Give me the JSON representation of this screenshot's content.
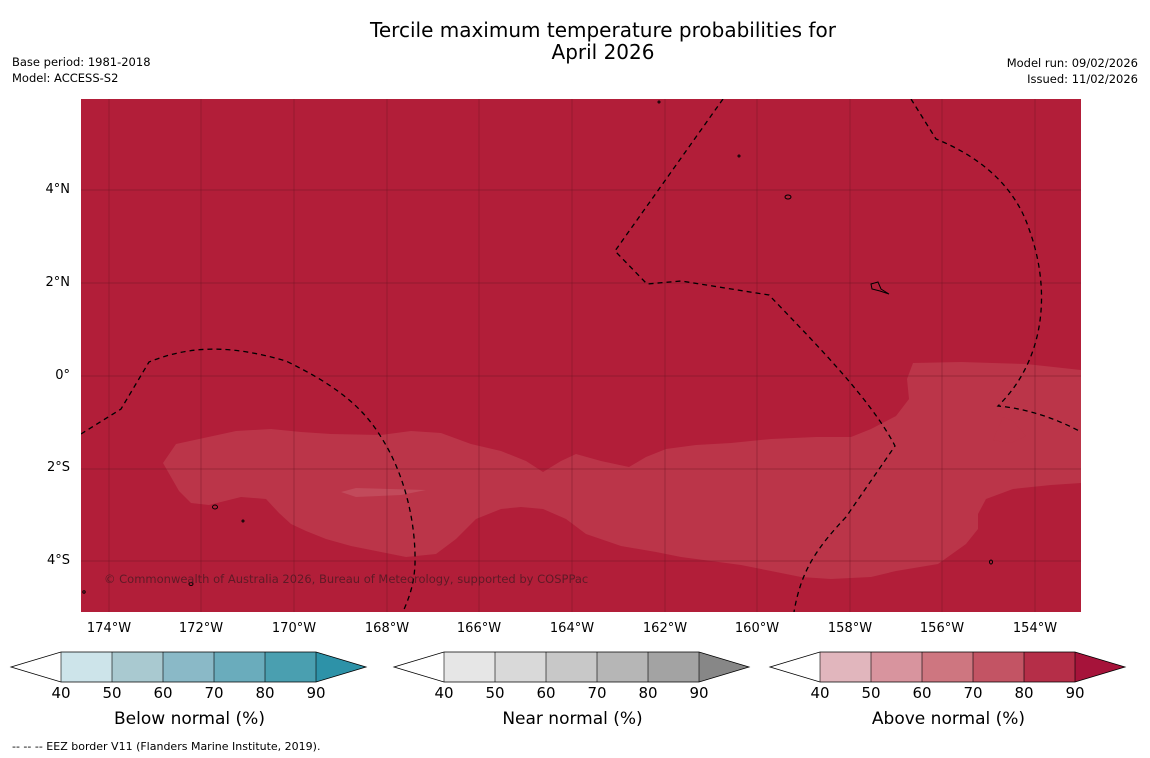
{
  "title": {
    "line1": "Tercile maximum temperature probabilities for",
    "line2": "April 2026"
  },
  "meta": {
    "base_period": "Base period: 1981-2018",
    "model": "Model: ACCESS-S2",
    "model_run": "Model run: 09/02/2026",
    "issued": "Issued: 11/02/2026"
  },
  "map": {
    "copyright": "© Commonwealth of Australia 2026, Bureau of Meteorology, supported by COSPPac",
    "lat_labels": [
      "4°N",
      "2°N",
      "0°",
      "2°S",
      "4°S"
    ],
    "lon_labels": [
      "174°W",
      "172°W",
      "170°W",
      "168°W",
      "166°W",
      "164°W",
      "162°W",
      "160°W",
      "158°W",
      "156°W",
      "154°W"
    ],
    "colors": {
      "base": "#b21e39",
      "band": "#bb3549",
      "grid": "#6e1424"
    }
  },
  "colorbars": [
    {
      "label": "Below normal (%)",
      "ticks": [
        "40",
        "50",
        "60",
        "70",
        "80",
        "90"
      ],
      "colors": [
        "#ffffff",
        "#cde4ea",
        "#a9c9d0",
        "#8ab9c7",
        "#6aacbc",
        "#4a9fb0",
        "#2d92a8"
      ]
    },
    {
      "label": "Near normal (%)",
      "ticks": [
        "40",
        "50",
        "60",
        "70",
        "80",
        "90"
      ],
      "colors": [
        "#ffffff",
        "#e6e6e6",
        "#d9d9d9",
        "#c8c8c8",
        "#b6b6b6",
        "#a3a3a3",
        "#878787"
      ]
    },
    {
      "label": "Above normal (%)",
      "ticks": [
        "40",
        "50",
        "60",
        "70",
        "80",
        "90"
      ],
      "colors": [
        "#ffffff",
        "#e1b6bd",
        "#d8949e",
        "#ce7680",
        "#c35464",
        "#b52e48",
        "#a6133a"
      ]
    }
  ],
  "footnote": "--  --  -- EEZ border V11 (Flanders Marine Institute, 2019)."
}
